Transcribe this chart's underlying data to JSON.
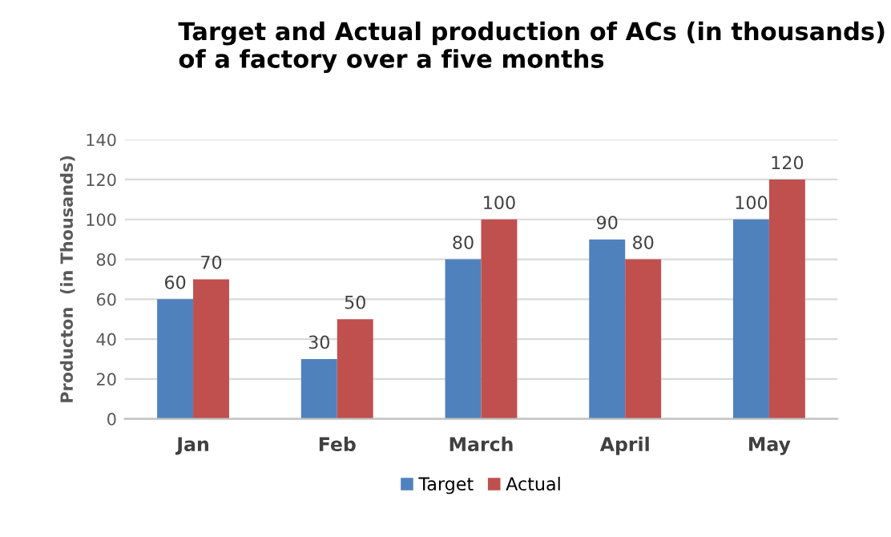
{
  "chart_data": {
    "type": "bar",
    "title": "Target and Actual production of ACs (in thousands)\nof a factory over a five months",
    "ylabel": "Producton  (in Thousands)",
    "categories": [
      "Jan",
      "Feb",
      "March",
      "April",
      "May"
    ],
    "series": [
      {
        "name": "Target",
        "color": "#4f81bd",
        "values": [
          60,
          30,
          80,
          90,
          100
        ]
      },
      {
        "name": "Actual",
        "color": "#c0504d",
        "values": [
          70,
          50,
          100,
          80,
          120
        ]
      }
    ],
    "ylim": [
      0,
      140
    ],
    "yticks": [
      0,
      20,
      40,
      60,
      80,
      100,
      120,
      140
    ],
    "grid": "y",
    "legend": "bottom",
    "data_labels": true
  }
}
